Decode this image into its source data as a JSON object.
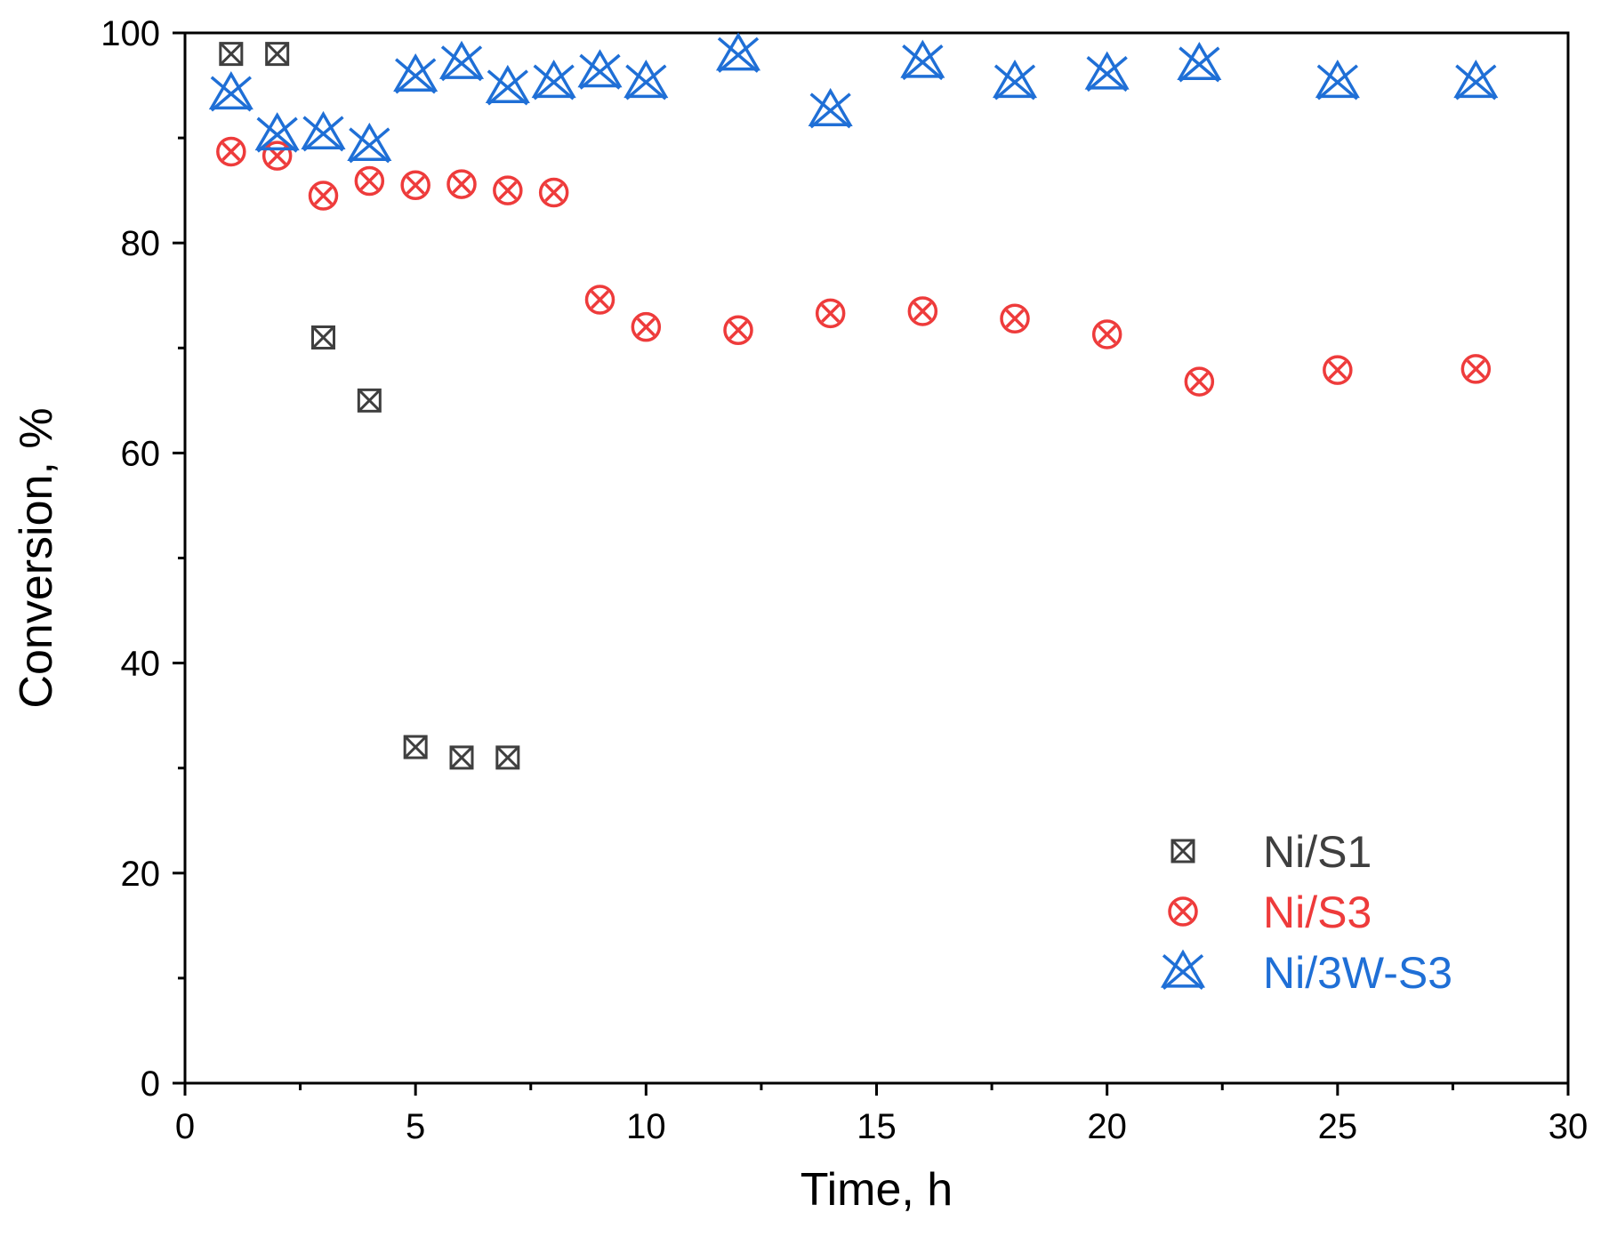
{
  "chart_data": {
    "type": "scatter",
    "title": "",
    "xlabel": "Time, h",
    "ylabel": "Conversion, %",
    "xlim": [
      0,
      30
    ],
    "ylim": [
      0,
      100
    ],
    "xticks": [
      "0",
      "5",
      "10",
      "15",
      "20",
      "25",
      "30"
    ],
    "yticks": [
      "0",
      "20",
      "40",
      "60",
      "80",
      "100"
    ],
    "grid": false,
    "legend_position": "bottom-right",
    "series": [
      {
        "name": "Ni/S1",
        "color": "#3f3f3f",
        "marker": "square-x",
        "x": [
          1,
          2,
          3,
          4,
          5,
          6,
          7
        ],
        "y": [
          98,
          98,
          71,
          65,
          32,
          31,
          31
        ]
      },
      {
        "name": "Ni/S3",
        "color": "#ee3b3b",
        "marker": "circle-x",
        "x": [
          1,
          2,
          3,
          4,
          5,
          6,
          7,
          8,
          9,
          10,
          12,
          14,
          16,
          18,
          20,
          22,
          25,
          28
        ],
        "y": [
          88.7,
          88.3,
          84.5,
          85.9,
          85.5,
          85.6,
          85.0,
          84.8,
          74.6,
          72.0,
          71.7,
          73.3,
          73.5,
          72.8,
          71.3,
          66.8,
          67.9,
          68.0
        ]
      },
      {
        "name": "Ni/3W-S3",
        "color": "#1f6fd6",
        "marker": "triangle-x",
        "x": [
          1,
          2,
          3,
          4,
          5,
          6,
          7,
          8,
          9,
          10,
          12,
          14,
          16,
          18,
          20,
          22,
          25,
          28
        ],
        "y": [
          94.2,
          90.3,
          90.4,
          89.3,
          95.9,
          97.1,
          94.8,
          95.3,
          96.3,
          95.3,
          97.9,
          92.6,
          97.2,
          95.3,
          96.1,
          97.0,
          95.3,
          95.3
        ]
      }
    ]
  }
}
